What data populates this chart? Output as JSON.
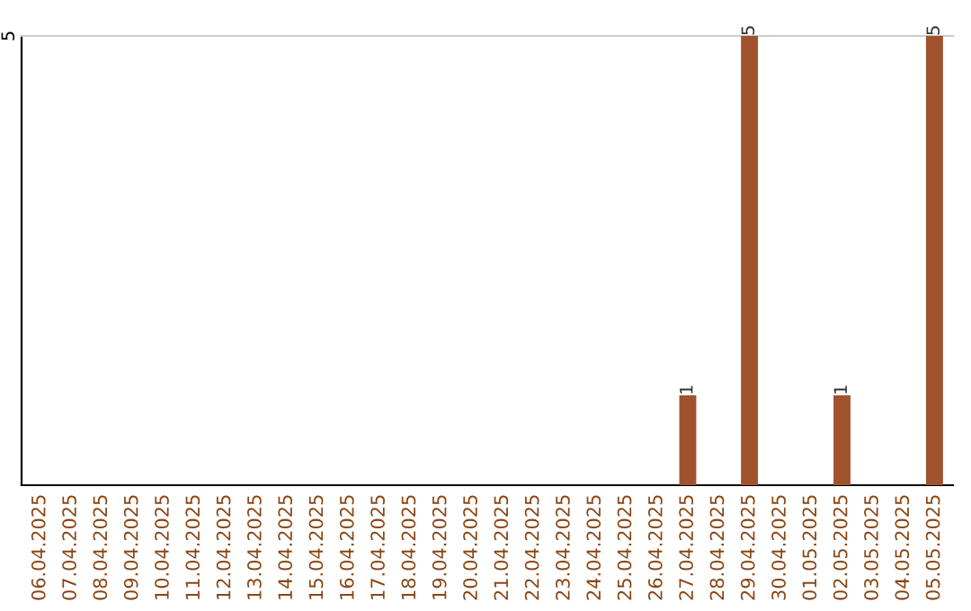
{
  "chart_data": {
    "type": "bar",
    "categories": [
      "06.04.2025",
      "07.04.2025",
      "08.04.2025",
      "09.04.2025",
      "10.04.2025",
      "11.04.2025",
      "12.04.2025",
      "13.04.2025",
      "14.04.2025",
      "15.04.2025",
      "16.04.2025",
      "17.04.2025",
      "18.04.2025",
      "19.04.2025",
      "20.04.2025",
      "21.04.2025",
      "22.04.2025",
      "23.04.2025",
      "24.04.2025",
      "25.04.2025",
      "26.04.2025",
      "27.04.2025",
      "28.04.2025",
      "29.04.2025",
      "30.04.2025",
      "01.05.2025",
      "02.05.2025",
      "03.05.2025",
      "04.05.2025",
      "05.05.2025"
    ],
    "values": [
      null,
      null,
      null,
      null,
      null,
      null,
      null,
      null,
      null,
      null,
      null,
      null,
      null,
      null,
      null,
      null,
      null,
      null,
      null,
      null,
      null,
      1,
      null,
      5,
      null,
      null,
      1,
      null,
      null,
      5
    ],
    "value_labels": [
      null,
      null,
      null,
      null,
      null,
      null,
      null,
      null,
      null,
      null,
      null,
      null,
      null,
      null,
      null,
      null,
      null,
      null,
      null,
      null,
      null,
      "1",
      null,
      "5",
      null,
      null,
      "1",
      null,
      null,
      "5"
    ],
    "color": "#a0522d",
    "ylim": [
      0,
      5
    ],
    "annotations": [
      "5"
    ]
  }
}
